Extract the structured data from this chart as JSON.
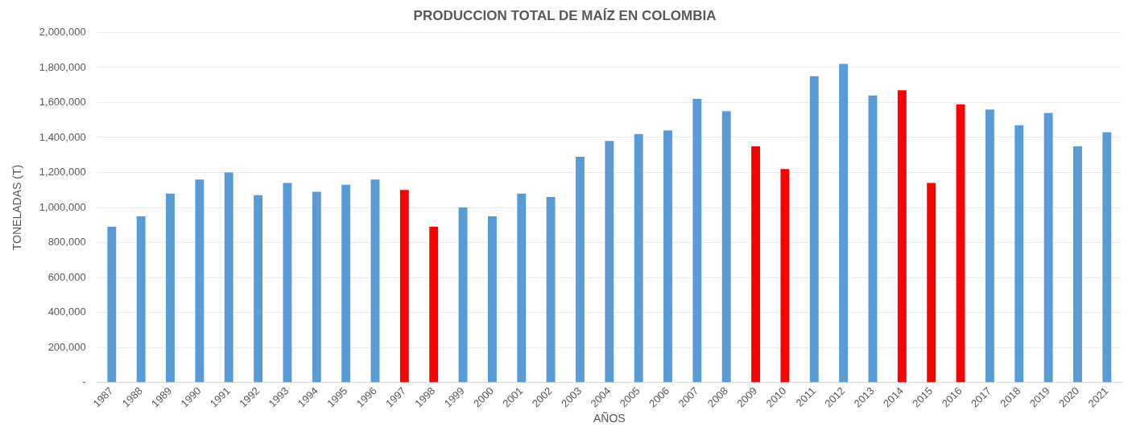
{
  "chart_data": {
    "type": "bar",
    "title": "PRODUCCION TOTAL DE MAÍZ EN COLOMBIA",
    "xlabel": "AÑOS",
    "ylabel": "TONELADAS (T)",
    "categories": [
      "1987",
      "1988",
      "1989",
      "1990",
      "1991",
      "1992",
      "1993",
      "1994",
      "1995",
      "1996",
      "1997",
      "1998",
      "1999",
      "2000",
      "2001",
      "2002",
      "2003",
      "2004",
      "2005",
      "2006",
      "2007",
      "2008",
      "2009",
      "2010",
      "2011",
      "2012",
      "2013",
      "2014",
      "2015",
      "2016",
      "2017",
      "2018",
      "2019",
      "2020",
      "2021"
    ],
    "values": [
      890000,
      950000,
      1080000,
      1160000,
      1200000,
      1070000,
      1140000,
      1090000,
      1130000,
      1160000,
      1100000,
      890000,
      1000000,
      950000,
      1080000,
      1060000,
      1290000,
      1380000,
      1420000,
      1440000,
      1620000,
      1550000,
      1350000,
      1220000,
      1750000,
      1820000,
      1640000,
      1670000,
      1140000,
      1590000,
      1560000,
      1470000,
      1540000,
      1350000,
      1430000
    ],
    "colors": [
      "#5b9bd5",
      "#5b9bd5",
      "#5b9bd5",
      "#5b9bd5",
      "#5b9bd5",
      "#5b9bd5",
      "#5b9bd5",
      "#5b9bd5",
      "#5b9bd5",
      "#5b9bd5",
      "#ff0000",
      "#ff0000",
      "#5b9bd5",
      "#5b9bd5",
      "#5b9bd5",
      "#5b9bd5",
      "#5b9bd5",
      "#5b9bd5",
      "#5b9bd5",
      "#5b9bd5",
      "#5b9bd5",
      "#5b9bd5",
      "#ff0000",
      "#ff0000",
      "#5b9bd5",
      "#5b9bd5",
      "#5b9bd5",
      "#ff0000",
      "#ff0000",
      "#ff0000",
      "#5b9bd5",
      "#5b9bd5",
      "#5b9bd5",
      "#5b9bd5",
      "#5b9bd5"
    ],
    "ylim": [
      0,
      2000000
    ],
    "yticks": [
      {
        "value": 0,
        "label": "-"
      },
      {
        "value": 200000,
        "label": "200,000"
      },
      {
        "value": 400000,
        "label": "400,000"
      },
      {
        "value": 600000,
        "label": "600,000"
      },
      {
        "value": 800000,
        "label": "800,000"
      },
      {
        "value": 1000000,
        "label": "1,000,000"
      },
      {
        "value": 1200000,
        "label": "1,200,000"
      },
      {
        "value": 1400000,
        "label": "1,400,000"
      },
      {
        "value": 1600000,
        "label": "1,600,000"
      },
      {
        "value": 1800000,
        "label": "1,800,000"
      },
      {
        "value": 2000000,
        "label": "2,000,000"
      }
    ],
    "grid": "y",
    "legend": false
  }
}
